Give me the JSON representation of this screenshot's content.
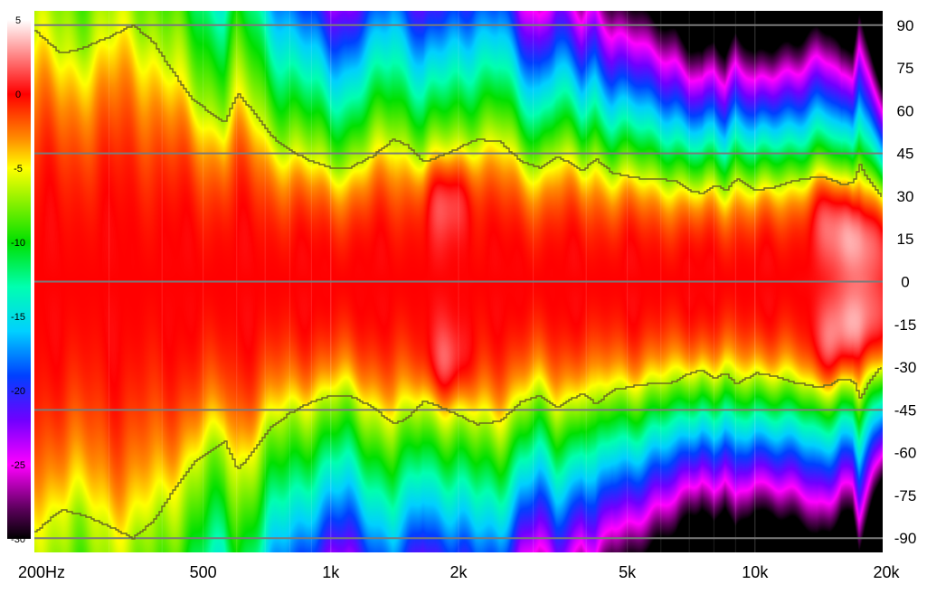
{
  "chart_data": {
    "type": "heatmap",
    "title": "",
    "xlabel": "",
    "ylabel": "",
    "x_scale": "log",
    "x_range": [
      200,
      20000
    ],
    "y_range": [
      -95,
      95
    ],
    "x_ticks": [
      {
        "value": 200,
        "label": "200Hz"
      },
      {
        "value": 500,
        "label": "500"
      },
      {
        "value": 1000,
        "label": "1k"
      },
      {
        "value": 2000,
        "label": "2k"
      },
      {
        "value": 5000,
        "label": "5k"
      },
      {
        "value": 10000,
        "label": "10k"
      },
      {
        "value": 20000,
        "label": "20k"
      }
    ],
    "y_ticks": [
      {
        "value": 90,
        "label": "90"
      },
      {
        "value": 75,
        "label": "75"
      },
      {
        "value": 60,
        "label": "60"
      },
      {
        "value": 45,
        "label": "45"
      },
      {
        "value": 30,
        "label": "30"
      },
      {
        "value": 15,
        "label": "15"
      },
      {
        "value": 0,
        "label": "0"
      },
      {
        "value": -15,
        "label": "-15"
      },
      {
        "value": -30,
        "label": "-30"
      },
      {
        "value": -45,
        "label": "-45"
      },
      {
        "value": -60,
        "label": "-60"
      },
      {
        "value": -75,
        "label": "-75"
      },
      {
        "value": -90,
        "label": "-90"
      }
    ],
    "horizontal_grid": [
      90,
      45,
      0,
      -45,
      -90
    ],
    "colorbar": {
      "range": [
        -30,
        5
      ],
      "ticks": [
        {
          "value": 5,
          "label": "5"
        },
        {
          "value": 0,
          "label": "0"
        },
        {
          "value": -5,
          "label": "-5"
        },
        {
          "value": -10,
          "label": "-10"
        },
        {
          "value": -15,
          "label": "-15"
        },
        {
          "value": -20,
          "label": "-20"
        },
        {
          "value": -25,
          "label": "-25"
        },
        {
          "value": -30,
          "label": "-30"
        }
      ],
      "stops": [
        {
          "value": 5,
          "color": "#ffffff"
        },
        {
          "value": 3,
          "color": "#ff9a9a"
        },
        {
          "value": 0,
          "color": "#ff0000"
        },
        {
          "value": -3,
          "color": "#ff8c00"
        },
        {
          "value": -5,
          "color": "#ffff00"
        },
        {
          "value": -10,
          "color": "#00e000"
        },
        {
          "value": -13,
          "color": "#00ffb0"
        },
        {
          "value": -16,
          "color": "#00d0ff"
        },
        {
          "value": -19,
          "color": "#0040ff"
        },
        {
          "value": -22,
          "color": "#7000ff"
        },
        {
          "value": -25,
          "color": "#ff00ff"
        },
        {
          "value": -28,
          "color": "#5a005a"
        },
        {
          "value": -30,
          "color": "#000000"
        }
      ]
    },
    "contour_db": -6,
    "contour_color": "#6b6b20",
    "beamwidth_contour": {
      "freq": [
        200,
        230,
        260,
        300,
        340,
        380,
        420,
        470,
        520,
        560,
        600,
        650,
        720,
        800,
        900,
        1000,
        1100,
        1250,
        1400,
        1500,
        1650,
        1800,
        2000,
        2200,
        2500,
        2800,
        3100,
        3400,
        3700,
        3900,
        4200,
        4600,
        5000,
        5500,
        6000,
        6500,
        7000,
        7500,
        8000,
        8500,
        9000,
        9500,
        10000,
        11000,
        12000,
        13000,
        14000,
        15000,
        16000,
        17000,
        17600,
        18200,
        19000,
        20000
      ],
      "angle": [
        88,
        80,
        82,
        86,
        90,
        84,
        74,
        64,
        59,
        56,
        66,
        60,
        51,
        46,
        42,
        40,
        40,
        44,
        50,
        48,
        42,
        44,
        47,
        50,
        49,
        42,
        40,
        44,
        41,
        39,
        43,
        38,
        37,
        36,
        36,
        35,
        32,
        31,
        34,
        32,
        36,
        34,
        32,
        33,
        35,
        36,
        37,
        36,
        34,
        35,
        41,
        37,
        33,
        29
      ]
    },
    "response_model": {
      "description": "-6 dB beamwidth contour; level scales with angle relative to it",
      "hot_spots": [
        {
          "freq": 1900,
          "angle": 30,
          "level": 3
        },
        {
          "freq": 1900,
          "angle": -30,
          "level": 3
        },
        {
          "freq": 15000,
          "angle": 25,
          "level": 2.5
        },
        {
          "freq": 15000,
          "angle": -25,
          "level": 2.5
        },
        {
          "freq": 17500,
          "angle": 15,
          "level": 3.5
        },
        {
          "freq": 17500,
          "angle": -15,
          "level": 3.5
        }
      ]
    }
  }
}
